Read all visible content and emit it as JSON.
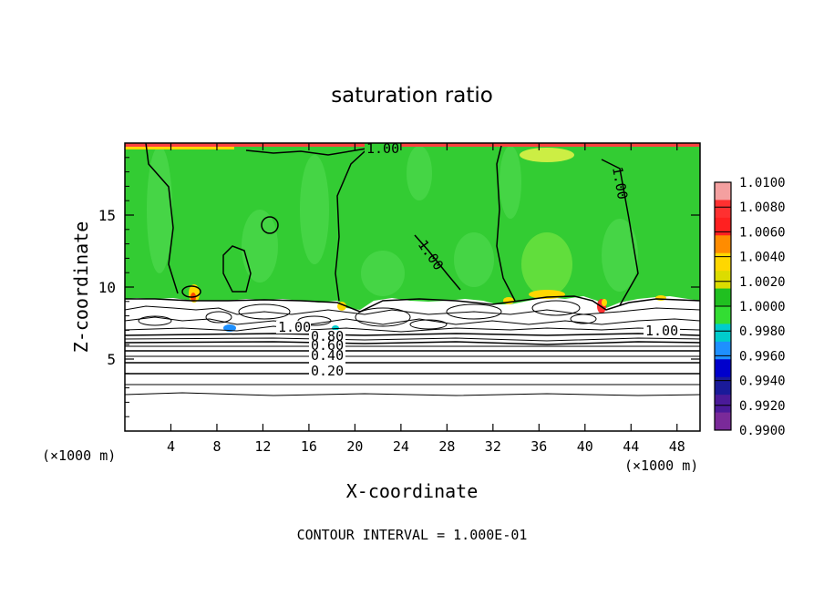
{
  "chart_data": {
    "type": "heatmap",
    "title": "saturation ratio",
    "xlabel": "X-coordinate",
    "ylabel": "Z-coordinate",
    "x_unit": "(×1000 m)",
    "x_unit_right": "(×1000 m)",
    "xlim": [
      0,
      50
    ],
    "ylim": [
      0,
      20
    ],
    "x_ticks": [
      4,
      8,
      12,
      16,
      20,
      24,
      28,
      32,
      36,
      40,
      44,
      48
    ],
    "y_ticks": [
      5,
      10,
      15
    ],
    "footer": "CONTOUR INTERVAL = 1.000E-01",
    "colorbar": {
      "levels": [
        "1.0100",
        "1.0080",
        "1.0060",
        "1.0040",
        "1.0020",
        "1.0000",
        "0.9980",
        "0.9960",
        "0.9940",
        "0.9920",
        "0.9900"
      ],
      "colors": [
        "#f4a0a0",
        "#ff3030",
        "#ff2020",
        "#ff8c00",
        "#ffd700",
        "#dcdc00",
        "#20c020",
        "#33dd33",
        "#00cccc",
        "#1e90ff",
        "#0000cc",
        "#1a1a99",
        "#4b1a99",
        "#7a2a99"
      ]
    },
    "field": {
      "supersaturated_region_top": 20,
      "supersaturated_region_bottom_approx": 9.2,
      "background_value": "1.0000"
    },
    "contour_labels": [
      {
        "text": "1.00",
        "x": 17.5,
        "z": 7.1
      },
      {
        "text": "1.00",
        "x": 36,
        "z": 19.5
      },
      {
        "text": "1.00",
        "x": 34,
        "z": 13
      },
      {
        "text": "1.00",
        "x": 47.5,
        "z": 17
      },
      {
        "text": "1.00",
        "x": 44,
        "z": 7.3
      },
      {
        "text": "0.80",
        "x": 18,
        "z": 6.5
      },
      {
        "text": "0.60",
        "x": 18,
        "z": 5.9
      },
      {
        "text": "0.40",
        "x": 18,
        "z": 5
      },
      {
        "text": "0.20",
        "x": 18,
        "z": 3.8
      }
    ],
    "stratified_contours_z": [
      6.9,
      6.6,
      6.3,
      6.0,
      5.6,
      5.1,
      4.6,
      4.1,
      3.5,
      2.6
    ]
  }
}
